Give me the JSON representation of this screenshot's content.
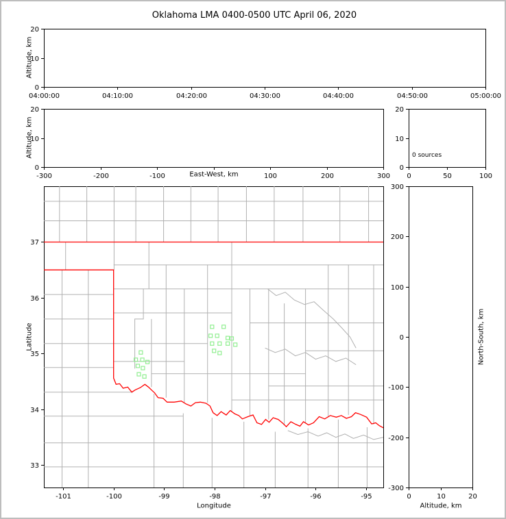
{
  "title": "Oklahoma LMA 0400-0500 UTC April 06, 2020",
  "labels": {
    "altitude_km": "Altitude, km",
    "east_west_km": "East-West, km",
    "latitude": "Latitude",
    "longitude": "Longitude",
    "north_south_km": "North-South, km",
    "sources_count": "0 sources"
  },
  "colors": {
    "axis": "#000000",
    "county": "#b0b0b0",
    "state_boundary": "#ff0000",
    "station": "#90ee90",
    "frame": "#bdbdbd",
    "background": "#ffffff"
  },
  "chart_data": [
    {
      "id": "time_altitude",
      "type": "scatter",
      "ylabel": "Altitude, km",
      "xtick_labels": [
        "04:00:00",
        "04:10:00",
        "04:20:00",
        "04:30:00",
        "04:40:00",
        "04:50:00",
        "05:00:00"
      ],
      "ylim": [
        0,
        20
      ],
      "ytick_values": [
        0,
        10,
        20
      ],
      "points": []
    },
    {
      "id": "east_west_altitude",
      "type": "scatter",
      "xlabel": "East-West, km",
      "ylabel": "Altitude, km",
      "xlim": [
        -300,
        300
      ],
      "xtick_values": [
        -300,
        -200,
        -100,
        0,
        100,
        200,
        300
      ],
      "xtick_labels": [
        "-300",
        "-200",
        "-100",
        "",
        "100",
        "200",
        "300"
      ],
      "ylim": [
        0,
        20
      ],
      "ytick_values": [
        0,
        10,
        20
      ],
      "points": []
    },
    {
      "id": "sources_histogram",
      "type": "scatter",
      "annotation": "0 sources",
      "xlim": [
        0,
        100
      ],
      "xtick_values": [
        0,
        50,
        100
      ],
      "ylim": [
        0,
        20
      ],
      "ytick_values": [
        0,
        10,
        20
      ],
      "points": []
    },
    {
      "id": "plan_view",
      "type": "scatter",
      "xlabel": "Longitude",
      "ylabel": "Latitude",
      "xlim": [
        -101.38,
        -94.66
      ],
      "xtick_values": [
        -101,
        -100,
        -99,
        -98,
        -97,
        -96,
        -95
      ],
      "ylim": [
        32.6,
        38.0
      ],
      "ytick_values": [
        33,
        34,
        35,
        36,
        37
      ],
      "stations": [
        [
          -99.46,
          35.02
        ],
        [
          -99.56,
          34.89
        ],
        [
          -99.43,
          34.89
        ],
        [
          -99.33,
          34.85
        ],
        [
          -99.52,
          34.78
        ],
        [
          -99.42,
          34.74
        ],
        [
          -99.5,
          34.63
        ],
        [
          -99.39,
          34.59
        ],
        [
          -98.05,
          35.48
        ],
        [
          -97.82,
          35.48
        ],
        [
          -98.08,
          35.32
        ],
        [
          -97.95,
          35.32
        ],
        [
          -97.74,
          35.28
        ],
        [
          -97.66,
          35.27
        ],
        [
          -98.05,
          35.18
        ],
        [
          -97.9,
          35.18
        ],
        [
          -97.74,
          35.18
        ],
        [
          -97.59,
          35.16
        ],
        [
          -98.01,
          35.05
        ],
        [
          -97.9,
          35.01
        ]
      ],
      "state_border": [
        [
          [
            -101.38,
            37.0
          ],
          [
            -94.66,
            37.0
          ]
        ],
        [
          [
            -101.38,
            36.5
          ],
          [
            -100.0,
            36.5
          ],
          [
            -100.0,
            34.56
          ],
          [
            -99.95,
            34.45
          ],
          [
            -99.88,
            34.46
          ],
          [
            -99.81,
            34.38
          ],
          [
            -99.72,
            34.4
          ],
          [
            -99.64,
            34.31
          ],
          [
            -99.57,
            34.35
          ],
          [
            -99.47,
            34.39
          ],
          [
            -99.38,
            34.45
          ],
          [
            -99.31,
            34.4
          ],
          [
            -99.24,
            34.34
          ],
          [
            -99.19,
            34.3
          ],
          [
            -99.12,
            34.21
          ],
          [
            -99.02,
            34.2
          ],
          [
            -98.94,
            34.13
          ],
          [
            -98.8,
            34.13
          ],
          [
            -98.66,
            34.15
          ],
          [
            -98.57,
            34.1
          ],
          [
            -98.47,
            34.06
          ],
          [
            -98.38,
            34.12
          ],
          [
            -98.28,
            34.13
          ],
          [
            -98.17,
            34.11
          ],
          [
            -98.09,
            34.06
          ],
          [
            -98.03,
            33.94
          ],
          [
            -97.95,
            33.89
          ],
          [
            -97.87,
            33.96
          ],
          [
            -97.77,
            33.9
          ],
          [
            -97.69,
            33.98
          ],
          [
            -97.6,
            33.92
          ],
          [
            -97.52,
            33.89
          ],
          [
            -97.45,
            33.83
          ],
          [
            -97.34,
            33.87
          ],
          [
            -97.24,
            33.9
          ],
          [
            -97.16,
            33.76
          ],
          [
            -97.07,
            33.73
          ],
          [
            -96.99,
            33.82
          ],
          [
            -96.92,
            33.77
          ],
          [
            -96.84,
            33.85
          ],
          [
            -96.74,
            33.82
          ],
          [
            -96.66,
            33.76
          ],
          [
            -96.58,
            33.69
          ],
          [
            -96.49,
            33.78
          ],
          [
            -96.39,
            33.73
          ],
          [
            -96.31,
            33.7
          ],
          [
            -96.24,
            33.78
          ],
          [
            -96.14,
            33.72
          ],
          [
            -96.04,
            33.76
          ],
          [
            -95.93,
            33.87
          ],
          [
            -95.82,
            33.83
          ],
          [
            -95.71,
            33.89
          ],
          [
            -95.59,
            33.86
          ],
          [
            -95.49,
            33.89
          ],
          [
            -95.39,
            33.84
          ],
          [
            -95.29,
            33.87
          ],
          [
            -95.21,
            33.94
          ],
          [
            -95.11,
            33.91
          ],
          [
            -94.99,
            33.86
          ],
          [
            -94.89,
            33.74
          ],
          [
            -94.81,
            33.76
          ],
          [
            -94.74,
            33.71
          ],
          [
            -94.66,
            33.67
          ]
        ]
      ],
      "county_lines": [
        [
          [
            -101.07,
            37.0
          ],
          [
            -101.07,
            38.0
          ]
        ],
        [
          [
            -100.53,
            37.0
          ],
          [
            -100.53,
            38.0
          ]
        ],
        [
          [
            -99.99,
            36.5
          ],
          [
            -99.99,
            38.0
          ]
        ],
        [
          [
            -99.56,
            37.0
          ],
          [
            -99.56,
            38.0
          ]
        ],
        [
          [
            -99.01,
            37.0
          ],
          [
            -99.01,
            38.0
          ]
        ],
        [
          [
            -98.47,
            37.0
          ],
          [
            -98.47,
            38.0
          ]
        ],
        [
          [
            -97.93,
            37.0
          ],
          [
            -97.93,
            38.0
          ]
        ],
        [
          [
            -97.37,
            37.0
          ],
          [
            -97.37,
            38.0
          ]
        ],
        [
          [
            -96.82,
            37.0
          ],
          [
            -96.82,
            38.0
          ]
        ],
        [
          [
            -96.25,
            37.0
          ],
          [
            -96.25,
            38.0
          ]
        ],
        [
          [
            -95.52,
            37.0
          ],
          [
            -95.52,
            38.0
          ]
        ],
        [
          [
            -94.95,
            37.0
          ],
          [
            -94.95,
            38.0
          ]
        ],
        [
          [
            -101.38,
            37.38
          ],
          [
            -94.66,
            37.38
          ]
        ],
        [
          [
            -101.38,
            37.73
          ],
          [
            -94.66,
            37.73
          ]
        ],
        [
          [
            -100.95,
            36.5
          ],
          [
            -100.95,
            37.0
          ]
        ],
        [
          [
            -101.38,
            36.06
          ],
          [
            -100.0,
            36.06
          ]
        ],
        [
          [
            -101.38,
            35.62
          ],
          [
            -100.0,
            35.62
          ]
        ],
        [
          [
            -101.38,
            35.18
          ],
          [
            -100.0,
            35.18
          ]
        ],
        [
          [
            -101.38,
            34.75
          ],
          [
            -100.0,
            34.75
          ]
        ],
        [
          [
            -101.38,
            34.31
          ],
          [
            -99.62,
            34.31
          ]
        ],
        [
          [
            -101.38,
            33.88
          ],
          [
            -98.62,
            33.88
          ]
        ],
        [
          [
            -101.38,
            33.4
          ],
          [
            -94.66,
            33.4
          ]
        ],
        [
          [
            -101.38,
            32.97
          ],
          [
            -94.66,
            32.97
          ]
        ],
        [
          [
            -101.02,
            36.5
          ],
          [
            -101.02,
            32.6
          ]
        ],
        [
          [
            -100.5,
            36.5
          ],
          [
            -100.5,
            32.6
          ]
        ],
        [
          [
            -99.2,
            34.28
          ],
          [
            -99.2,
            32.6
          ]
        ],
        [
          [
            -98.62,
            33.93
          ],
          [
            -98.62,
            32.6
          ]
        ],
        [
          [
            -98.05,
            33.85
          ],
          [
            -98.05,
            32.6
          ]
        ],
        [
          [
            -97.42,
            33.78
          ],
          [
            -97.42,
            32.6
          ]
        ],
        [
          [
            -96.8,
            33.6
          ],
          [
            -96.8,
            32.6
          ]
        ],
        [
          [
            -96.15,
            33.66
          ],
          [
            -96.15,
            32.6
          ]
        ],
        [
          [
            -95.55,
            33.82
          ],
          [
            -95.55,
            32.6
          ]
        ],
        [
          [
            -94.98,
            33.68
          ],
          [
            -94.98,
            32.6
          ]
        ],
        [
          [
            -99.3,
            37.0
          ],
          [
            -99.3,
            36.16
          ]
        ],
        [
          [
            -98.96,
            36.59
          ],
          [
            -98.96,
            34.21
          ]
        ],
        [
          [
            -99.41,
            36.16
          ],
          [
            -99.41,
            35.62
          ],
          [
            -99.58,
            35.62
          ],
          [
            -99.58,
            34.73
          ]
        ],
        [
          [
            -99.25,
            35.62
          ],
          [
            -99.25,
            34.4
          ]
        ],
        [
          [
            -98.6,
            36.16
          ],
          [
            -98.6,
            34.12
          ]
        ],
        [
          [
            -98.14,
            36.59
          ],
          [
            -98.14,
            34.12
          ]
        ],
        [
          [
            -97.66,
            37.0
          ],
          [
            -97.66,
            33.95
          ]
        ],
        [
          [
            -97.3,
            36.16
          ],
          [
            -97.3,
            33.88
          ]
        ],
        [
          [
            -96.93,
            36.16
          ],
          [
            -96.93,
            33.82
          ]
        ],
        [
          [
            -96.62,
            35.9
          ],
          [
            -96.62,
            33.72
          ]
        ],
        [
          [
            -96.2,
            36.16
          ],
          [
            -96.2,
            33.76
          ]
        ],
        [
          [
            -95.75,
            36.59
          ],
          [
            -95.75,
            33.87
          ]
        ],
        [
          [
            -95.35,
            36.59
          ],
          [
            -95.35,
            33.9
          ]
        ],
        [
          [
            -94.85,
            36.59
          ],
          [
            -94.85,
            33.73
          ]
        ],
        [
          [
            -100.0,
            36.59
          ],
          [
            -94.66,
            36.59
          ]
        ],
        [
          [
            -100.0,
            36.16
          ],
          [
            -94.66,
            36.16
          ]
        ],
        [
          [
            -100.0,
            35.73
          ],
          [
            -97.66,
            35.73
          ]
        ],
        [
          [
            -97.3,
            35.55
          ],
          [
            -94.66,
            35.55
          ]
        ],
        [
          [
            -100.0,
            35.18
          ],
          [
            -98.14,
            35.18
          ]
        ],
        [
          [
            -96.2,
            35.05
          ],
          [
            -94.66,
            35.05
          ]
        ],
        [
          [
            -100.0,
            34.86
          ],
          [
            -98.6,
            34.86
          ]
        ],
        [
          [
            -99.25,
            34.64
          ],
          [
            -96.2,
            34.64
          ]
        ],
        [
          [
            -96.93,
            34.42
          ],
          [
            -94.66,
            34.42
          ]
        ],
        [
          [
            -97.66,
            34.17
          ],
          [
            -94.66,
            34.17
          ]
        ],
        [
          [
            -96.95,
            36.16
          ],
          [
            -96.78,
            36.04
          ],
          [
            -96.6,
            36.1
          ],
          [
            -96.42,
            35.96
          ],
          [
            -96.22,
            35.88
          ],
          [
            -96.03,
            35.93
          ],
          [
            -95.85,
            35.78
          ],
          [
            -95.65,
            35.62
          ],
          [
            -95.48,
            35.46
          ],
          [
            -95.32,
            35.3
          ],
          [
            -95.2,
            35.1
          ]
        ],
        [
          [
            -97.0,
            35.1
          ],
          [
            -96.8,
            35.02
          ],
          [
            -96.6,
            35.08
          ],
          [
            -96.4,
            34.96
          ],
          [
            -96.2,
            35.02
          ],
          [
            -96.0,
            34.9
          ],
          [
            -95.8,
            34.96
          ],
          [
            -95.6,
            34.86
          ],
          [
            -95.4,
            34.92
          ],
          [
            -95.2,
            34.8
          ]
        ],
        [
          [
            -96.55,
            33.62
          ],
          [
            -96.35,
            33.55
          ],
          [
            -96.15,
            33.6
          ],
          [
            -95.95,
            33.52
          ],
          [
            -95.78,
            33.58
          ],
          [
            -95.6,
            33.5
          ],
          [
            -95.42,
            33.56
          ],
          [
            -95.25,
            33.48
          ],
          [
            -95.05,
            33.54
          ],
          [
            -94.85,
            33.46
          ],
          [
            -94.66,
            33.5
          ]
        ]
      ]
    },
    {
      "id": "north_south_altitude",
      "type": "scatter",
      "xlabel": "Altitude, km",
      "ylabel": "North-South, km",
      "xlim": [
        0,
        20
      ],
      "xtick_values": [
        0,
        10,
        20
      ],
      "ylim": [
        -300,
        300
      ],
      "ytick_values": [
        -300,
        -200,
        -100,
        0,
        100,
        200,
        300
      ],
      "points": []
    }
  ]
}
